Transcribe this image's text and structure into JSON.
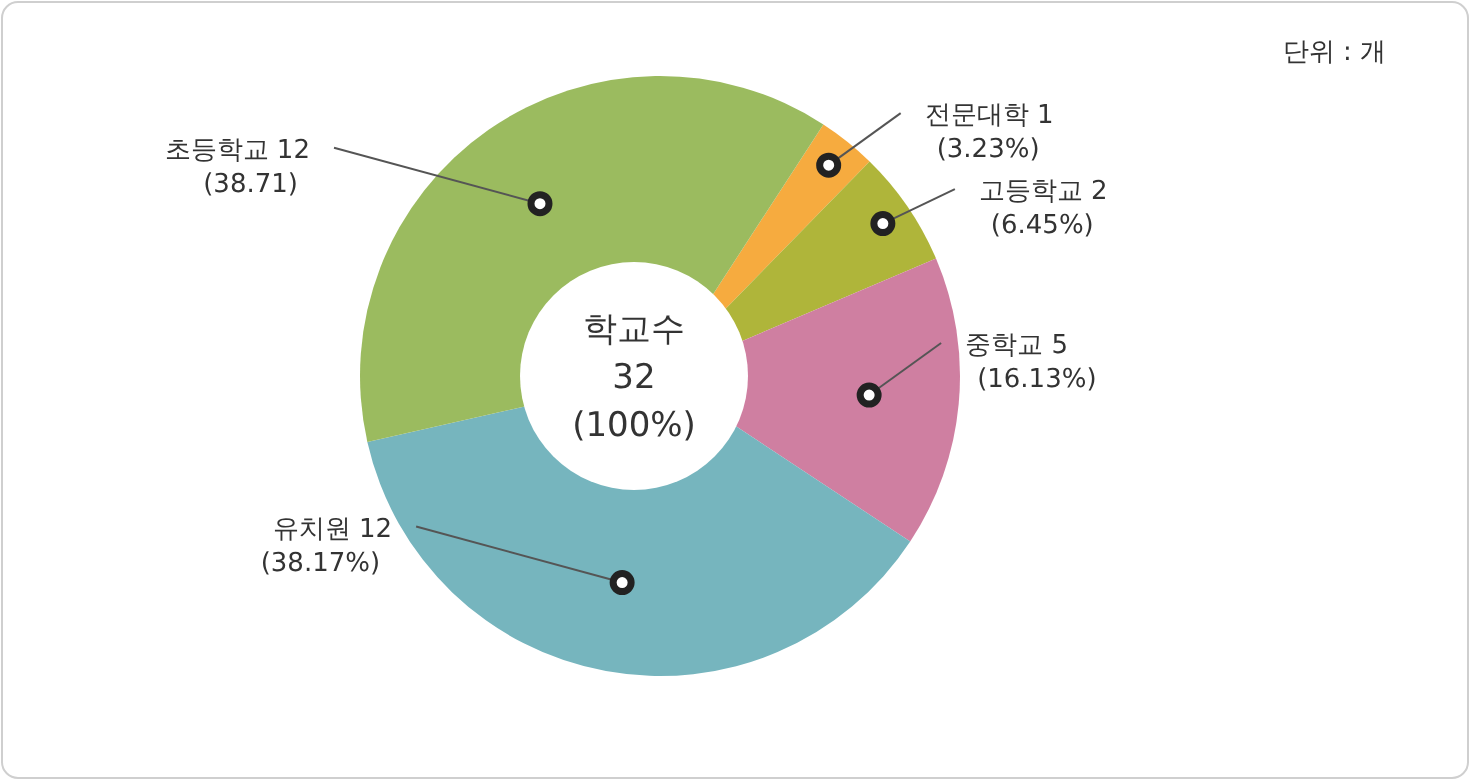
{
  "chart_data": {
    "type": "pie",
    "title": "학교수",
    "subtitle": "32\n(100%)",
    "categories": [
      "전문대학 1",
      "고등학교 2",
      "중학교 5",
      "유치원 12",
      "초등학교 12"
    ],
    "values": [
      3.23,
      6.45,
      16.13,
      38.17,
      38.71
    ],
    "value_labels": [
      "(3.23%)",
      "(6.45%)",
      "(16.13%)",
      "(38.17%)",
      "(38.71)"
    ],
    "colors": [
      "#f6ab3f",
      "#afb53a",
      "#cf7fa1",
      "#76b5be",
      "#9bbb5f"
    ],
    "annotations": [
      "단위 : 개"
    ]
  }
}
